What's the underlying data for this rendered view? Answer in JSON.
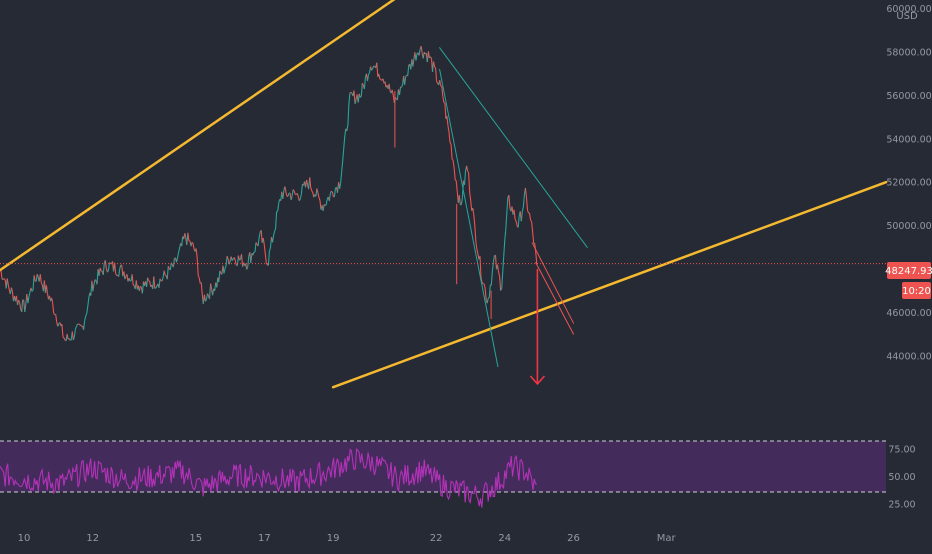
{
  "chart_data": {
    "type": "line",
    "symbol_currency": "USD",
    "price_axis": {
      "ticks": [
        44000,
        46000,
        48000,
        50000,
        52000,
        54000,
        56000,
        58000,
        60000
      ],
      "tick_labels": [
        "44000.00",
        "46000.00",
        "48000.00",
        "50000.00",
        "52000.00",
        "54000.00",
        "56000.00",
        "58000.00",
        "60000.00"
      ],
      "range": [
        41500,
        60400
      ]
    },
    "time_axis": {
      "labels": [
        {
          "label": "10",
          "day": 10
        },
        {
          "label": "12",
          "day": 12
        },
        {
          "label": "15",
          "day": 15
        },
        {
          "label": "17",
          "day": 17
        },
        {
          "label": "19",
          "day": 19
        },
        {
          "label": "22",
          "day": 22
        },
        {
          "label": "24",
          "day": 24
        },
        {
          "label": "26",
          "day": 26
        },
        {
          "label": "Mar",
          "day": 28.7
        }
      ],
      "range_days": [
        9.3,
        35.1
      ]
    },
    "price_series": {
      "name": "",
      "color_up": "#26a69a",
      "color_down": "#ef5350",
      "anchors": [
        [
          9.3,
          48000
        ],
        [
          9.6,
          47000
        ],
        [
          10.0,
          46200
        ],
        [
          10.4,
          47800
        ],
        [
          10.8,
          46500
        ],
        [
          11.2,
          44700
        ],
        [
          11.7,
          45300
        ],
        [
          12.0,
          47300
        ],
        [
          12.4,
          48200
        ],
        [
          12.9,
          47900
        ],
        [
          13.4,
          47200
        ],
        [
          14.0,
          47500
        ],
        [
          14.4,
          48200
        ],
        [
          14.7,
          49500
        ],
        [
          15.0,
          48800
        ],
        [
          15.2,
          46600
        ],
        [
          15.6,
          47300
        ],
        [
          16.0,
          48600
        ],
        [
          16.5,
          48300
        ],
        [
          16.9,
          49500
        ],
        [
          17.1,
          48300
        ],
        [
          17.5,
          51500
        ],
        [
          18.0,
          51400
        ],
        [
          18.3,
          52000
        ],
        [
          18.7,
          50900
        ],
        [
          19.0,
          51600
        ],
        [
          19.2,
          52000
        ],
        [
          19.5,
          55900
        ],
        [
          19.8,
          56000
        ],
        [
          20.1,
          57500
        ],
        [
          20.5,
          56800
        ],
        [
          20.8,
          55700
        ],
        [
          21.2,
          57200
        ],
        [
          21.5,
          58200
        ],
        [
          21.8,
          57800
        ],
        [
          22.2,
          56000
        ],
        [
          22.5,
          53000
        ],
        [
          22.7,
          50800
        ],
        [
          22.9,
          52800
        ],
        [
          23.1,
          50200
        ],
        [
          23.3,
          48000
        ],
        [
          23.5,
          46500
        ],
        [
          23.7,
          48500
        ],
        [
          23.9,
          47200
        ],
        [
          24.1,
          51200
        ],
        [
          24.4,
          50000
        ],
        [
          24.6,
          51400
        ],
        [
          24.8,
          49800
        ],
        [
          24.93,
          48248
        ]
      ],
      "last_price": "48247.93",
      "countdown": "10:20"
    },
    "rsi": {
      "color": "#b332b8",
      "band_fill": "#5b2c7a",
      "upper": 70,
      "lower": 30,
      "ticks": [
        75,
        50,
        25
      ],
      "tick_labels": [
        "75.00",
        "50.00",
        "25.00"
      ],
      "range": [
        18,
        92
      ],
      "anchors": [
        [
          9.3,
          52
        ],
        [
          10.2,
          47
        ],
        [
          11.1,
          44
        ],
        [
          12.0,
          58
        ],
        [
          12.9,
          47
        ],
        [
          13.8,
          50
        ],
        [
          14.6,
          55
        ],
        [
          15.2,
          40
        ],
        [
          16.1,
          51
        ],
        [
          17.0,
          50
        ],
        [
          17.9,
          45
        ],
        [
          18.8,
          54
        ],
        [
          19.6,
          66
        ],
        [
          20.2,
          62
        ],
        [
          20.9,
          48
        ],
        [
          21.6,
          56
        ],
        [
          22.2,
          42
        ],
        [
          22.8,
          36
        ],
        [
          23.3,
          32
        ],
        [
          23.8,
          44
        ],
        [
          24.2,
          59
        ],
        [
          24.6,
          55
        ],
        [
          24.93,
          38
        ]
      ]
    },
    "annotations": [
      {
        "kind": "trendline",
        "color": "#f5b930",
        "width": 2.5,
        "from": [
          9.3,
          47950
        ],
        "to": [
          23.6,
          63500
        ]
      },
      {
        "kind": "trendline",
        "color": "#f5b930",
        "width": 2.5,
        "from": [
          19.0,
          42550
        ],
        "to": [
          35.1,
          52000
        ]
      },
      {
        "kind": "trendline",
        "color": "#26a69a",
        "width": 1,
        "from": [
          22.1,
          58200
        ],
        "to": [
          26.4,
          49000
        ]
      },
      {
        "kind": "trendline",
        "color": "#26a69a",
        "width": 1,
        "from": [
          22.1,
          57200
        ],
        "to": [
          23.8,
          43500
        ]
      },
      {
        "kind": "trendline",
        "color": "#ef5350",
        "width": 1,
        "from": [
          24.9,
          48300
        ],
        "to": [
          26.0,
          45000
        ]
      },
      {
        "kind": "trendline",
        "color": "#ef5350",
        "width": 1,
        "from": [
          24.8,
          49200
        ],
        "to": [
          26.0,
          45500
        ]
      },
      {
        "kind": "arrow",
        "color": "#f23645",
        "from": [
          24.95,
          48000
        ],
        "to": [
          24.95,
          42700
        ]
      },
      {
        "kind": "price-line",
        "color": "#ef5350",
        "value": 48248
      }
    ]
  }
}
